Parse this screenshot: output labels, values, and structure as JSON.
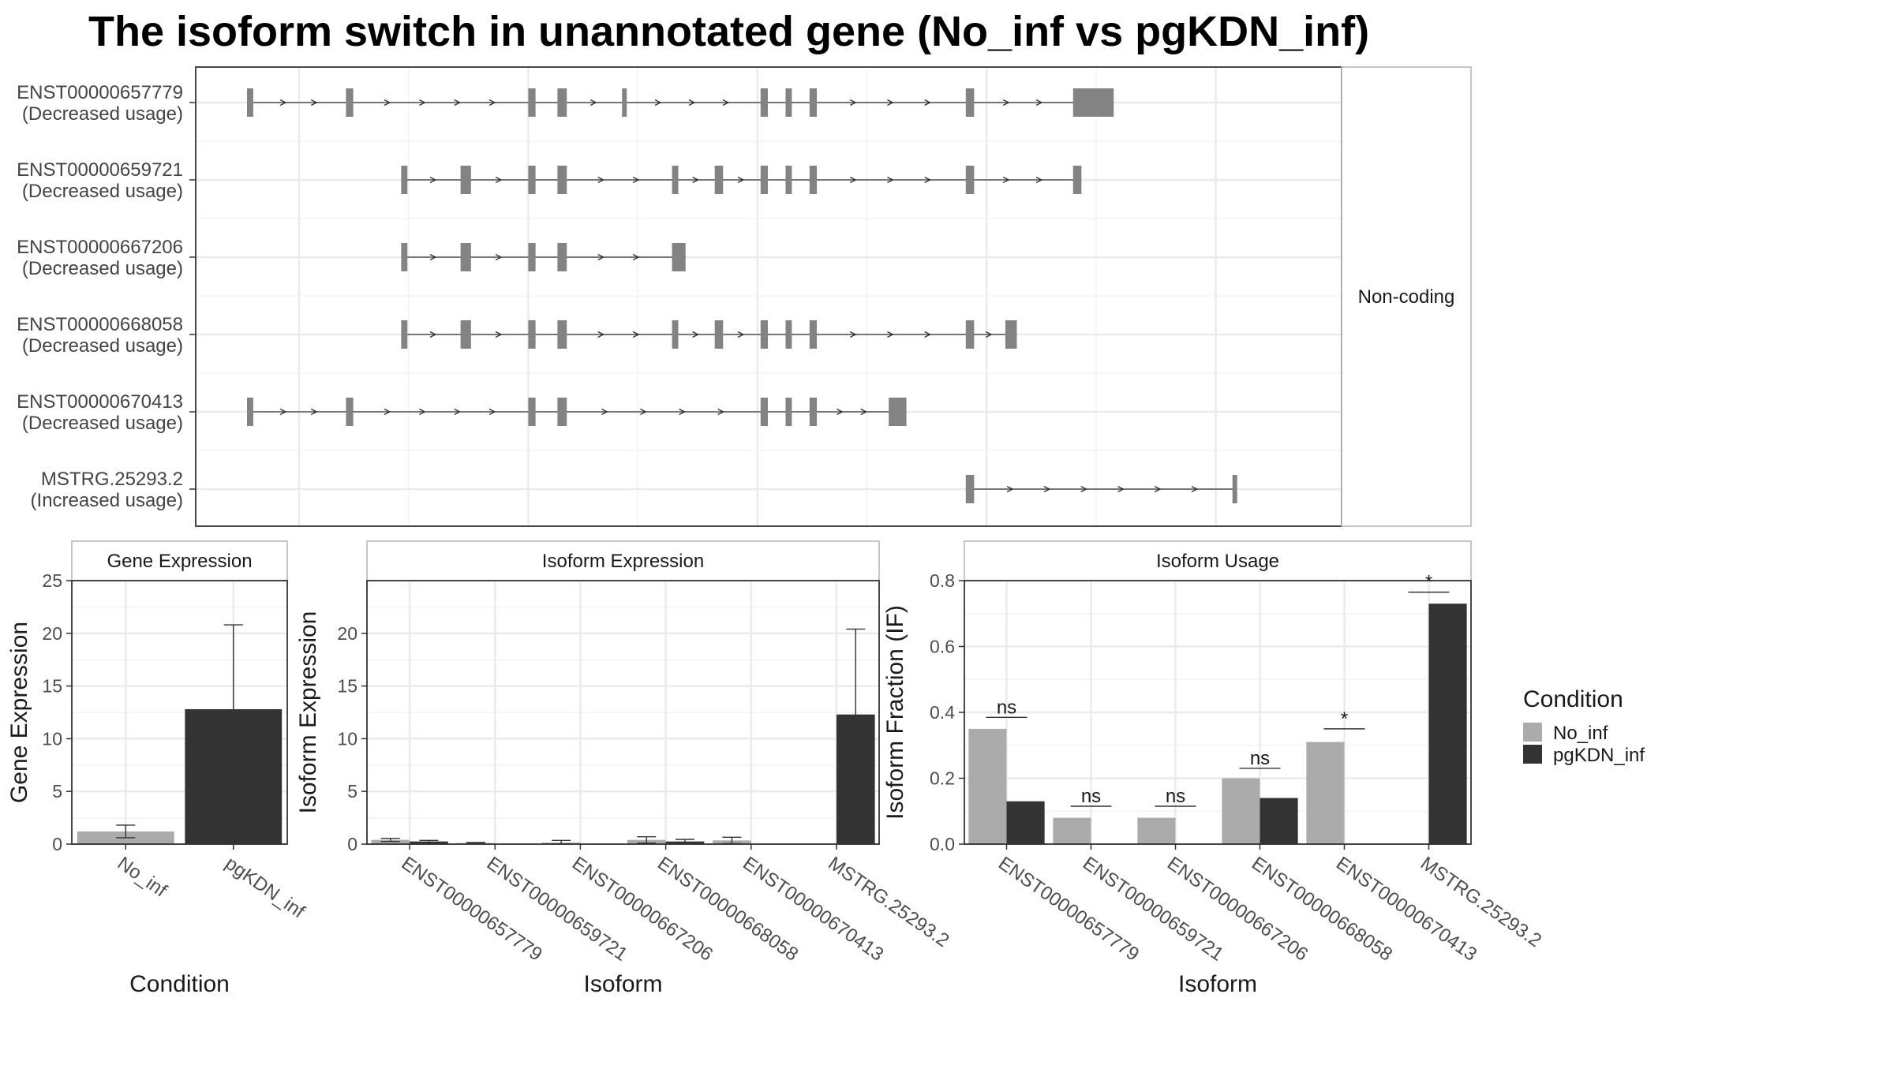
{
  "title": "The isoform switch in unannotated gene (No_inf vs pgKDN_inf)",
  "colors": {
    "no_inf": "#ababab",
    "pgkdn_inf": "#333333",
    "exon": "#838383",
    "grid": "#ebebeb",
    "panel_border": "#333333",
    "strip_border": "#b3b3b3"
  },
  "chart_data": [
    {
      "type": "gene-structure",
      "strip": "Non-coding",
      "xlim": [
        0,
        1
      ],
      "transcripts": [
        {
          "id": "ENST00000657779",
          "usage": "(Decreased usage)",
          "exons": [
            [
              0.0,
              0.006
            ],
            [
              0.095,
              0.102
            ],
            [
              0.27,
              0.277
            ],
            [
              0.298,
              0.307
            ],
            [
              0.36,
              0.363
            ],
            [
              0.493,
              0.5
            ],
            [
              0.517,
              0.523
            ],
            [
              0.54,
              0.547
            ],
            [
              0.69,
              0.698
            ],
            [
              0.793,
              0.832
            ]
          ]
        },
        {
          "id": "ENST00000659721",
          "usage": "(Decreased usage)",
          "exons": [
            [
              0.148,
              0.154
            ],
            [
              0.205,
              0.215
            ],
            [
              0.27,
              0.277
            ],
            [
              0.298,
              0.307
            ],
            [
              0.408,
              0.414
            ],
            [
              0.449,
              0.457
            ],
            [
              0.493,
              0.5
            ],
            [
              0.517,
              0.523
            ],
            [
              0.54,
              0.547
            ],
            [
              0.69,
              0.698
            ],
            [
              0.793,
              0.801
            ]
          ]
        },
        {
          "id": "ENST00000667206",
          "usage": "(Decreased usage)",
          "exons": [
            [
              0.148,
              0.154
            ],
            [
              0.205,
              0.215
            ],
            [
              0.27,
              0.277
            ],
            [
              0.298,
              0.307
            ],
            [
              0.408,
              0.421
            ]
          ]
        },
        {
          "id": "ENST00000668058",
          "usage": "(Decreased usage)",
          "exons": [
            [
              0.148,
              0.154
            ],
            [
              0.205,
              0.215
            ],
            [
              0.27,
              0.277
            ],
            [
              0.298,
              0.307
            ],
            [
              0.408,
              0.414
            ],
            [
              0.449,
              0.457
            ],
            [
              0.493,
              0.5
            ],
            [
              0.517,
              0.523
            ],
            [
              0.54,
              0.547
            ],
            [
              0.69,
              0.698
            ],
            [
              0.728,
              0.739
            ]
          ]
        },
        {
          "id": "ENST00000670413",
          "usage": "(Decreased usage)",
          "exons": [
            [
              0.0,
              0.006
            ],
            [
              0.095,
              0.102
            ],
            [
              0.27,
              0.277
            ],
            [
              0.298,
              0.307
            ],
            [
              0.493,
              0.5
            ],
            [
              0.517,
              0.523
            ],
            [
              0.54,
              0.547
            ],
            [
              0.616,
              0.633
            ]
          ]
        },
        {
          "id": "MSTRG.25293.2",
          "usage": "(Increased usage)",
          "exons": [
            [
              0.69,
              0.698
            ],
            [
              0.946,
              0.95
            ]
          ]
        }
      ]
    },
    {
      "type": "bar",
      "strip": "Gene Expression",
      "xlabel": "Condition",
      "ylabel": "Gene Expression",
      "ylim": [
        0,
        25
      ],
      "yticks": [
        0,
        5,
        10,
        15,
        20,
        25
      ],
      "categories": [
        "No_inf",
        "pgKDN_inf"
      ],
      "values": [
        1.2,
        12.8
      ],
      "error_low": [
        0.6,
        4.8
      ],
      "error_high": [
        1.8,
        20.8
      ]
    },
    {
      "type": "bar",
      "strip": "Isoform Expression",
      "xlabel": "Isoform",
      "ylabel": "Isoform Expression",
      "ylim": [
        0,
        25
      ],
      "yticks": [
        0,
        5,
        10,
        15,
        20
      ],
      "categories": [
        "ENST00000657779",
        "ENST00000659721",
        "ENST00000667206",
        "ENST00000668058",
        "ENST00000670413",
        "MSTRG.25293.2"
      ],
      "series": [
        {
          "name": "No_inf",
          "values": [
            0.4,
            0.1,
            0.15,
            0.4,
            0.35,
            0.0
          ],
          "error_low": [
            0.25,
            0.05,
            0.0,
            0.1,
            0.05,
            0.0
          ],
          "error_high": [
            0.55,
            0.15,
            0.35,
            0.7,
            0.65,
            0.0
          ]
        },
        {
          "name": "pgKDN_inf",
          "values": [
            0.25,
            0.0,
            0.0,
            0.25,
            0.0,
            12.3
          ],
          "error_low": [
            0.15,
            0.0,
            0.0,
            0.1,
            0.0,
            4.2
          ],
          "error_high": [
            0.35,
            0.0,
            0.0,
            0.45,
            0.0,
            20.4
          ]
        }
      ]
    },
    {
      "type": "bar",
      "strip": "Isoform Usage",
      "xlabel": "Isoform",
      "ylabel": "Isoform Fraction (IF)",
      "ylim": [
        0,
        0.8
      ],
      "yticks": [
        0.0,
        0.2,
        0.4,
        0.6,
        0.8
      ],
      "categories": [
        "ENST00000657779",
        "ENST00000659721",
        "ENST00000667206",
        "ENST00000668058",
        "ENST00000670413",
        "MSTRG.25293.2"
      ],
      "series": [
        {
          "name": "No_inf",
          "values": [
            0.35,
            0.08,
            0.08,
            0.2,
            0.31,
            0.0
          ]
        },
        {
          "name": "pgKDN_inf",
          "values": [
            0.13,
            0.0,
            0.0,
            0.14,
            0.0,
            0.73
          ]
        }
      ],
      "significance": [
        "ns",
        "ns",
        "ns",
        "ns",
        "*",
        "*"
      ],
      "significance_level": [
        0.385,
        0.115,
        0.115,
        0.23,
        0.35,
        0.765
      ]
    }
  ],
  "legend": {
    "title": "Condition",
    "items": [
      {
        "label": "No_inf",
        "color": "#ababab"
      },
      {
        "label": "pgKDN_inf",
        "color": "#333333"
      }
    ]
  }
}
